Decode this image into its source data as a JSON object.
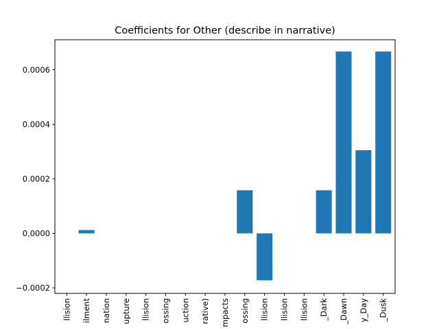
{
  "chart_data": {
    "type": "bar",
    "title": "Coefficients for Other (describe in narrative)",
    "xlabel": "",
    "ylabel": "",
    "categories": [
      "llision",
      "ilment",
      "nation",
      "upture",
      "llision",
      "ossing",
      "uction",
      "rative)",
      "mpacts",
      "ossing",
      "llision",
      "llision",
      "llision",
      "_Dark",
      "_Dawn",
      "y_Day",
      "_Dusk"
    ],
    "values": [
      0,
      1.2e-05,
      0,
      0,
      0,
      0,
      0,
      0,
      0,
      0.000158,
      -0.000172,
      0,
      0,
      0.000158,
      0.000667,
      0.000305,
      0.000667
    ],
    "ylim": [
      -0.00022,
      0.00071
    ],
    "yticks": [
      -0.0002,
      0.0,
      0.0002,
      0.0004,
      0.0006
    ],
    "ytick_labels": [
      "−0.0002",
      "0.0000",
      "0.0002",
      "0.0004",
      "0.0006"
    ],
    "bar_color": "#1f77b4",
    "grid": false,
    "legend": "none"
  }
}
